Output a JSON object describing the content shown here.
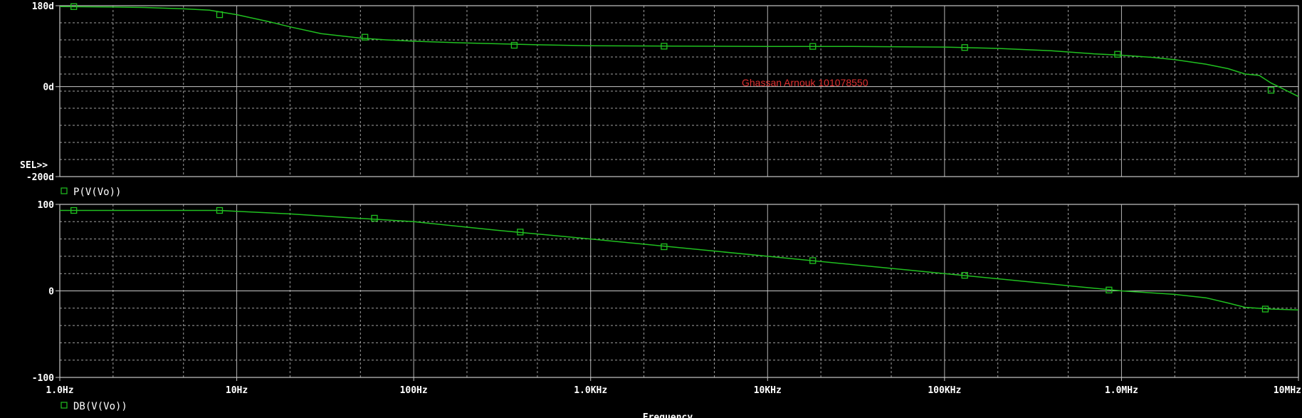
{
  "chart_data": [
    {
      "type": "line",
      "panel": "phase",
      "x_scale": "log",
      "xlim": [
        1,
        10000000
      ],
      "ylim": [
        -200,
        180
      ],
      "y_ticks": [
        {
          "value": 180,
          "label": "180d"
        },
        {
          "value": 0,
          "label": "0d"
        },
        {
          "value": -200,
          "label": "-200d"
        }
      ],
      "series": [
        {
          "name": "P(V(Vo))",
          "x": [
            1,
            2,
            3,
            5,
            7,
            10,
            15,
            20,
            30,
            50,
            70,
            100,
            200,
            500,
            1000,
            3000,
            10000,
            30000,
            100000,
            200000,
            400000,
            700000,
            1000000,
            1500000,
            2000000,
            3000000,
            4000000,
            5000000,
            6000000,
            7000000,
            8000000,
            10000000
          ],
          "y": [
            178,
            177,
            176,
            173,
            170,
            160,
            145,
            133,
            118,
            108,
            104,
            101,
            97,
            93,
            91,
            90,
            89.5,
            89.5,
            88,
            85,
            80,
            73,
            70,
            65,
            60,
            50,
            40,
            28,
            25,
            8,
            -3,
            -22
          ],
          "markers_x": [
            1.2,
            8,
            53,
            370,
            2600,
            18000,
            130000,
            950000,
            7000000
          ],
          "markers_y": [
            178,
            160,
            110,
            92,
            90,
            89.5,
            87,
            72,
            -8
          ]
        }
      ],
      "annotation": "Ghassan Arnouk 101078550",
      "sel_label": "SEL>>",
      "grid": true
    },
    {
      "type": "line",
      "panel": "magnitude",
      "x_scale": "log",
      "xlim": [
        1,
        10000000
      ],
      "ylim": [
        -100,
        100
      ],
      "y_ticks": [
        {
          "value": 100,
          "label": "100"
        },
        {
          "value": 0,
          "label": "0"
        },
        {
          "value": -100,
          "label": "-100"
        }
      ],
      "series": [
        {
          "name": "DB(V(Vo))",
          "x": [
            1,
            3,
            8,
            10,
            20,
            40,
            100,
            300,
            1000,
            10000,
            100000,
            1000000,
            2000000,
            3000000,
            4000000,
            5000000,
            7000000,
            10000000
          ],
          "y": [
            93,
            93,
            93,
            92,
            89,
            85,
            80,
            70,
            60,
            40,
            20,
            0,
            -4,
            -8,
            -14,
            -19,
            -21,
            -22
          ],
          "markers_x": [
            1.2,
            8,
            60,
            400,
            2600,
            18000,
            130000,
            850000,
            6500000
          ],
          "markers_y": [
            93,
            93,
            84,
            68,
            51,
            35,
            18,
            1,
            -21
          ]
        }
      ],
      "grid": true
    }
  ],
  "x_axis": {
    "ticks": [
      {
        "value": 1,
        "label": "1.0Hz"
      },
      {
        "value": 10,
        "label": "10Hz"
      },
      {
        "value": 100,
        "label": "100Hz"
      },
      {
        "value": 1000,
        "label": "1.0KHz"
      },
      {
        "value": 10000,
        "label": "10KHz"
      },
      {
        "value": 100000,
        "label": "100KHz"
      },
      {
        "value": 1000000,
        "label": "1.0MHz"
      },
      {
        "value": 10000000,
        "label": "10MHz"
      }
    ],
    "xlabel": "Frequency"
  },
  "colors": {
    "trace": "#20c020",
    "axes": "#c8c8c8",
    "grid": "#c8c8c8",
    "text": "#ffffff",
    "annotation": "#e03030",
    "background": "#000000"
  }
}
